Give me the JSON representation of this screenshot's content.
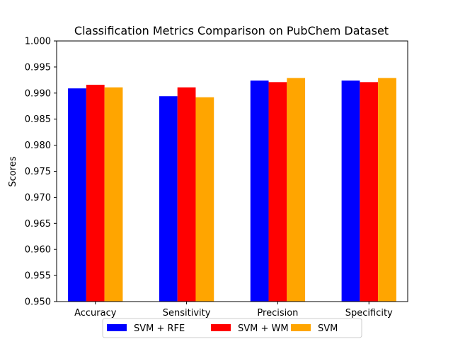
{
  "chart_data": {
    "type": "bar",
    "title": "Classification Metrics Comparison on PubChem Dataset",
    "xlabel": "",
    "ylabel": "Scores",
    "ylim": [
      0.95,
      1.0
    ],
    "yticks": [
      "0.950",
      "0.955",
      "0.960",
      "0.965",
      "0.970",
      "0.975",
      "0.980",
      "0.985",
      "0.990",
      "0.995",
      "1.000"
    ],
    "categories": [
      "Accuracy",
      "Sensitivity",
      "Precision",
      "Specificity"
    ],
    "series": [
      {
        "name": "SVM + RFE",
        "color": "#0000ff",
        "values": [
          0.9909,
          0.9894,
          0.9924,
          0.9924
        ]
      },
      {
        "name": "SVM + WM",
        "color": "#ff0000",
        "values": [
          0.9916,
          0.9911,
          0.9921,
          0.9921
        ]
      },
      {
        "name": "SVM",
        "color": "#ffa500",
        "values": [
          0.9911,
          0.9892,
          0.9929,
          0.9929
        ]
      }
    ],
    "grid": false,
    "legend_position": "bottom-center"
  }
}
